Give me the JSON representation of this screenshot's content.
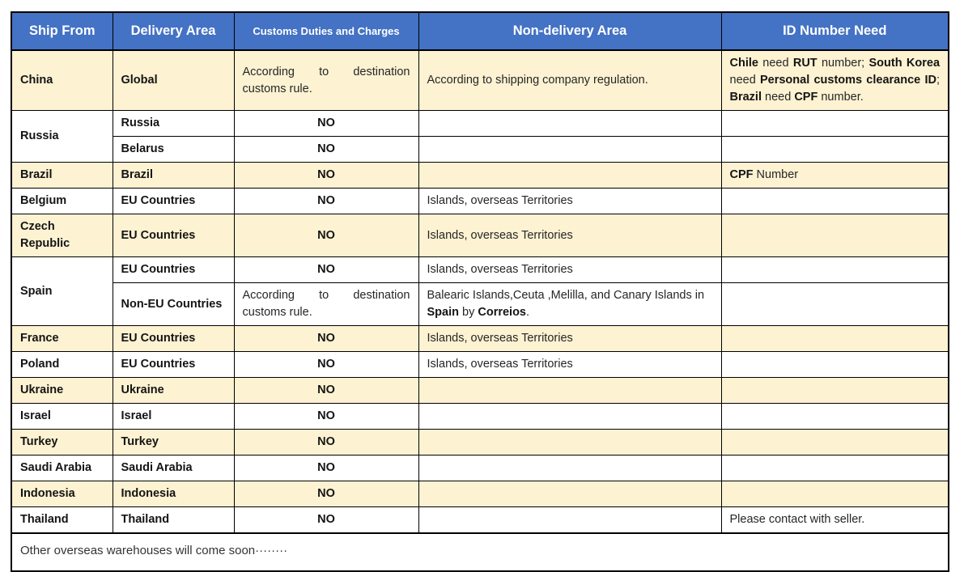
{
  "colors": {
    "header_bg": "#4472C4",
    "header_text": "#FFFFFF",
    "stripe_bg": "#FDF2D2",
    "white_bg": "#FFFFFF",
    "border": "#000000",
    "body_text": "#262626"
  },
  "table": {
    "headers": [
      "Ship From",
      "Delivery Area",
      "Customs Duties and Charges",
      "Non-delivery Area",
      "ID Number Need"
    ],
    "rows": [
      {
        "bg": "stripe",
        "cells": [
          {
            "text": "China",
            "bold": true
          },
          {
            "text": "Global",
            "bold": true
          },
          {
            "text": "According to destination customs rule.",
            "justify": true
          },
          {
            "text": "According to shipping company regulation."
          },
          {
            "rich": [
              [
                "Chile",
                1
              ],
              [
                " need ",
                0
              ],
              [
                "RUT",
                1
              ],
              [
                " number; ",
                0
              ],
              [
                "South Korea",
                1
              ],
              [
                " need ",
                0
              ],
              [
                "Personal customs clearance ID",
                1
              ],
              [
                "; ",
                0
              ],
              [
                "Brazil",
                1
              ],
              [
                " need ",
                0
              ],
              [
                "CPF",
                1
              ],
              [
                " number.",
                0
              ]
            ],
            "justify": true
          }
        ]
      },
      {
        "bg": "white",
        "cells": [
          {
            "text": "Russia",
            "bold": true,
            "rowspan": 2
          },
          {
            "text": "Russia",
            "bold": true
          },
          {
            "text": "NO",
            "bold": true,
            "align": "center"
          },
          {
            "text": ""
          },
          {
            "text": ""
          }
        ]
      },
      {
        "bg": "white",
        "cells": [
          {
            "text": "Belarus",
            "bold": true
          },
          {
            "text": "NO",
            "bold": true,
            "align": "center"
          },
          {
            "text": ""
          },
          {
            "text": ""
          }
        ]
      },
      {
        "bg": "stripe",
        "cells": [
          {
            "text": "Brazil",
            "bold": true
          },
          {
            "text": "Brazil",
            "bold": true
          },
          {
            "text": "NO",
            "bold": true,
            "align": "center"
          },
          {
            "text": ""
          },
          {
            "rich": [
              [
                "CPF",
                1
              ],
              [
                " Number",
                0
              ]
            ]
          }
        ]
      },
      {
        "bg": "white",
        "cells": [
          {
            "text": "Belgium",
            "bold": true
          },
          {
            "text": "EU Countries",
            "bold": true
          },
          {
            "text": "NO",
            "bold": true,
            "align": "center"
          },
          {
            "text": "Islands, overseas Territories"
          },
          {
            "text": ""
          }
        ]
      },
      {
        "bg": "stripe",
        "cells": [
          {
            "text": "Czech Republic",
            "bold": true
          },
          {
            "text": "EU Countries",
            "bold": true
          },
          {
            "text": "NO",
            "bold": true,
            "align": "center"
          },
          {
            "text": "Islands, overseas Territories"
          },
          {
            "text": ""
          }
        ]
      },
      {
        "bg": "white",
        "cells": [
          {
            "text": "Spain",
            "bold": true,
            "rowspan": 2
          },
          {
            "text": "EU Countries",
            "bold": true
          },
          {
            "text": "NO",
            "bold": true,
            "align": "center"
          },
          {
            "text": "Islands, overseas Territories"
          },
          {
            "text": ""
          }
        ]
      },
      {
        "bg": "white",
        "cells": [
          {
            "text": "Non-EU Countries",
            "bold": true
          },
          {
            "text": "According to destination customs rule.",
            "justify": true
          },
          {
            "rich": [
              [
                "Balearic Islands,Ceuta ,Melilla, and Canary Islands in ",
                0
              ],
              [
                "Spain",
                1
              ],
              [
                " by ",
                0
              ],
              [
                "Correios",
                1
              ],
              [
                ".",
                0
              ]
            ]
          },
          {
            "text": ""
          }
        ]
      },
      {
        "bg": "stripe",
        "cells": [
          {
            "text": "France",
            "bold": true
          },
          {
            "text": "EU Countries",
            "bold": true
          },
          {
            "text": "NO",
            "bold": true,
            "align": "center"
          },
          {
            "text": "Islands, overseas Territories"
          },
          {
            "text": ""
          }
        ]
      },
      {
        "bg": "white",
        "cells": [
          {
            "text": "Poland",
            "bold": true
          },
          {
            "text": "EU Countries",
            "bold": true
          },
          {
            "text": "NO",
            "bold": true,
            "align": "center"
          },
          {
            "text": "Islands, overseas Territories"
          },
          {
            "text": ""
          }
        ]
      },
      {
        "bg": "stripe",
        "cells": [
          {
            "text": "Ukraine",
            "bold": true
          },
          {
            "text": "Ukraine",
            "bold": true
          },
          {
            "text": "NO",
            "bold": true,
            "align": "center"
          },
          {
            "text": ""
          },
          {
            "text": ""
          }
        ]
      },
      {
        "bg": "white",
        "cells": [
          {
            "text": "Israel",
            "bold": true
          },
          {
            "text": "Israel",
            "bold": true
          },
          {
            "text": "NO",
            "bold": true,
            "align": "center"
          },
          {
            "text": ""
          },
          {
            "text": ""
          }
        ]
      },
      {
        "bg": "stripe",
        "cells": [
          {
            "text": "Turkey",
            "bold": true
          },
          {
            "text": "Turkey",
            "bold": true
          },
          {
            "text": "NO",
            "bold": true,
            "align": "center"
          },
          {
            "text": ""
          },
          {
            "text": ""
          }
        ]
      },
      {
        "bg": "white",
        "cells": [
          {
            "text": "Saudi Arabia",
            "bold": true
          },
          {
            "text": "Saudi Arabia",
            "bold": true
          },
          {
            "text": "NO",
            "bold": true,
            "align": "center"
          },
          {
            "text": ""
          },
          {
            "text": ""
          }
        ]
      },
      {
        "bg": "stripe",
        "cells": [
          {
            "text": "Indonesia",
            "bold": true
          },
          {
            "text": "Indonesia",
            "bold": true
          },
          {
            "text": "NO",
            "bold": true,
            "align": "center"
          },
          {
            "text": ""
          },
          {
            "text": ""
          }
        ]
      },
      {
        "bg": "white",
        "cells": [
          {
            "text": "Thailand",
            "bold": true
          },
          {
            "text": "Thailand",
            "bold": true
          },
          {
            "text": "NO",
            "bold": true,
            "align": "center"
          },
          {
            "text": ""
          },
          {
            "text": "Please contact with seller."
          }
        ]
      }
    ],
    "footer": "Other overseas warehouses will come soon········"
  }
}
